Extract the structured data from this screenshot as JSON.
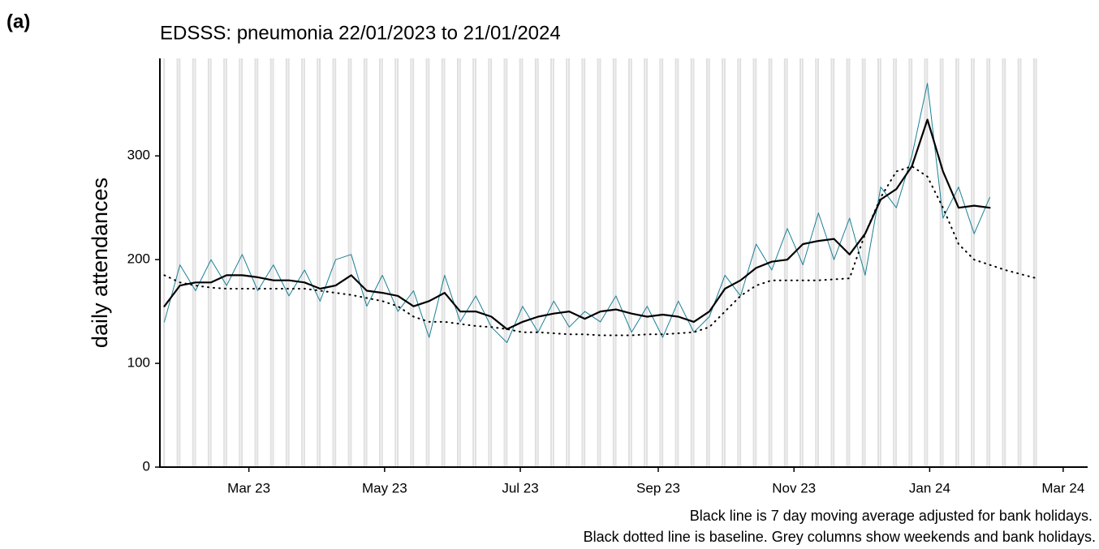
{
  "panel_label": "(a)",
  "chart_data": {
    "type": "line",
    "title": "EDSSS: pneumonia 22/01/2023 to 21/01/2024",
    "y_label": "daily attendances",
    "notes": [
      "Black line is 7 day moving average adjusted for bank holidays.",
      "Black dotted line is baseline. Grey columns show weekends and bank holidays."
    ],
    "x": [
      "2023-01-22",
      "2023-01-29",
      "2023-02-05",
      "2023-02-12",
      "2023-02-19",
      "2023-02-26",
      "2023-03-05",
      "2023-03-12",
      "2023-03-19",
      "2023-03-26",
      "2023-04-02",
      "2023-04-09",
      "2023-04-16",
      "2023-04-23",
      "2023-04-30",
      "2023-05-07",
      "2023-05-14",
      "2023-05-21",
      "2023-05-28",
      "2023-06-04",
      "2023-06-11",
      "2023-06-18",
      "2023-06-25",
      "2023-07-02",
      "2023-07-09",
      "2023-07-16",
      "2023-07-23",
      "2023-07-30",
      "2023-08-06",
      "2023-08-13",
      "2023-08-20",
      "2023-08-27",
      "2023-09-03",
      "2023-09-10",
      "2023-09-17",
      "2023-09-24",
      "2023-10-01",
      "2023-10-08",
      "2023-10-15",
      "2023-10-22",
      "2023-10-29",
      "2023-11-05",
      "2023-11-12",
      "2023-11-19",
      "2023-11-26",
      "2023-12-03",
      "2023-12-10",
      "2023-12-17",
      "2023-12-24",
      "2023-12-31",
      "2024-01-07",
      "2024-01-14",
      "2024-01-21",
      "2024-01-28",
      "2024-02-04",
      "2024-02-11",
      "2024-02-18"
    ],
    "series": [
      {
        "name": "daily",
        "color": "#1a7f96",
        "width": 1,
        "style": "solid",
        "values": [
          140,
          195,
          170,
          200,
          175,
          205,
          170,
          195,
          165,
          190,
          160,
          200,
          205,
          155,
          185,
          150,
          170,
          125,
          185,
          140,
          165,
          135,
          120,
          155,
          130,
          160,
          135,
          150,
          140,
          165,
          130,
          155,
          125,
          160,
          130,
          145,
          185,
          165,
          215,
          190,
          230,
          195,
          245,
          200,
          240,
          185,
          270,
          250,
          300,
          370,
          240,
          270,
          225,
          260,
          null,
          null,
          null
        ]
      },
      {
        "name": "7 day moving average",
        "color": "#000000",
        "width": 2.2,
        "style": "solid",
        "values": [
          155,
          175,
          178,
          178,
          185,
          185,
          183,
          180,
          180,
          178,
          172,
          175,
          185,
          170,
          168,
          165,
          155,
          160,
          168,
          150,
          150,
          145,
          133,
          140,
          145,
          148,
          150,
          143,
          150,
          152,
          148,
          145,
          147,
          145,
          140,
          150,
          172,
          180,
          192,
          198,
          200,
          215,
          218,
          220,
          205,
          225,
          258,
          268,
          290,
          335,
          285,
          250,
          252,
          250,
          null,
          null,
          null
        ]
      },
      {
        "name": "baseline",
        "color": "#000000",
        "width": 2,
        "style": "dotted",
        "values": [
          185,
          178,
          175,
          173,
          172,
          172,
          172,
          172,
          172,
          172,
          170,
          168,
          166,
          163,
          160,
          155,
          145,
          140,
          140,
          138,
          136,
          135,
          133,
          130,
          130,
          129,
          128,
          128,
          127,
          127,
          127,
          128,
          128,
          129,
          130,
          135,
          150,
          165,
          175,
          180,
          180,
          180,
          180,
          181,
          182,
          225,
          260,
          285,
          290,
          280,
          250,
          215,
          200,
          195,
          190,
          186,
          182
        ]
      }
    ],
    "xlim": [
      "2023-01-20",
      "2024-03-12"
    ],
    "xticks": [
      {
        "value": "2023-03-01",
        "label": "Mar 23"
      },
      {
        "value": "2023-05-01",
        "label": "May 23"
      },
      {
        "value": "2023-07-01",
        "label": "Jul 23"
      },
      {
        "value": "2023-09-01",
        "label": "Sep 23"
      },
      {
        "value": "2023-11-01",
        "label": "Nov 23"
      },
      {
        "value": "2024-01-01",
        "label": "Jan 24"
      },
      {
        "value": "2024-03-01",
        "label": "Mar 24"
      }
    ],
    "ylim": [
      0,
      394
    ],
    "yticks": [
      0,
      100,
      200,
      300
    ],
    "weekend_color": "#e0e0e0"
  }
}
